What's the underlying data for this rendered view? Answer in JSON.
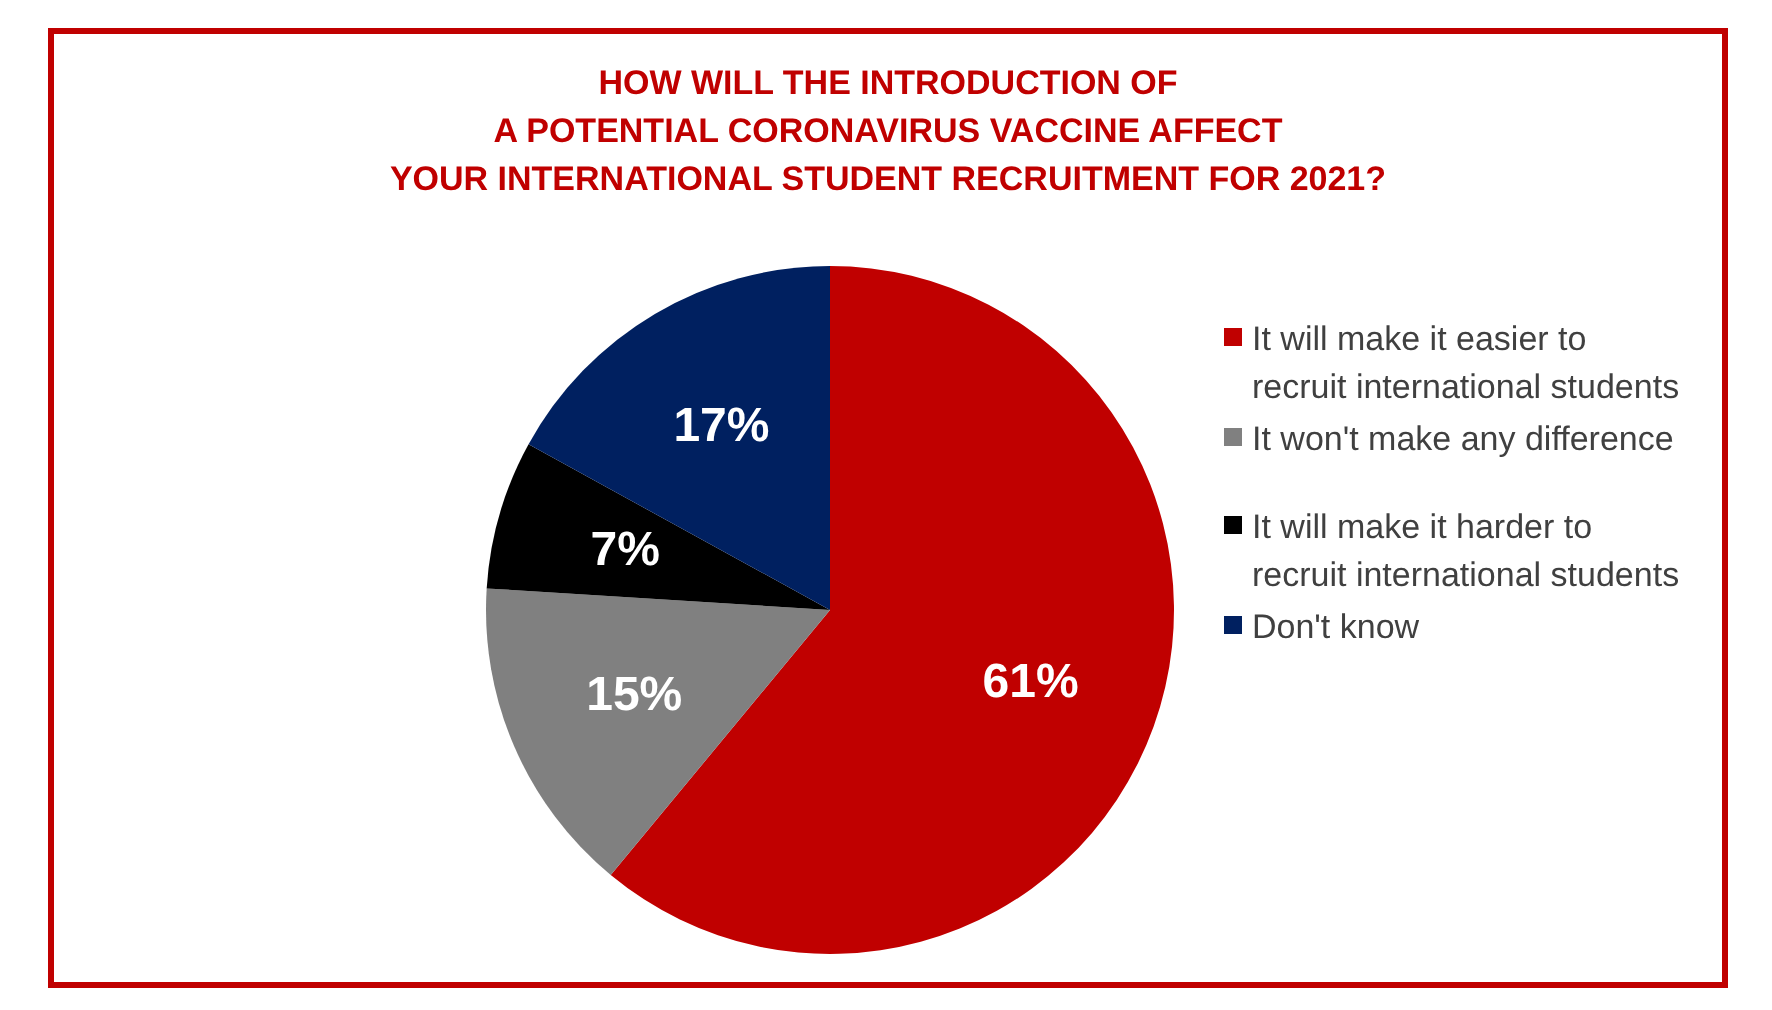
{
  "chart_data": {
    "type": "pie",
    "title": "HOW WILL THE INTRODUCTION OF\nA POTENTIAL CORONAVIRUS VACCINE AFFECT\nYOUR INTERNATIONAL STUDENT RECRUITMENT FOR 2021?",
    "categories": [
      "It will make it easier to recruit international students",
      "It won't make any difference",
      "It will make it harder to recruit international students",
      "Don't know"
    ],
    "values": [
      61,
      15,
      7,
      17
    ],
    "colors": [
      "#c00000",
      "#808080",
      "#000000",
      "#002060"
    ],
    "value_labels": [
      "61%",
      "15%",
      "7%",
      "17%"
    ],
    "legend": "right"
  }
}
